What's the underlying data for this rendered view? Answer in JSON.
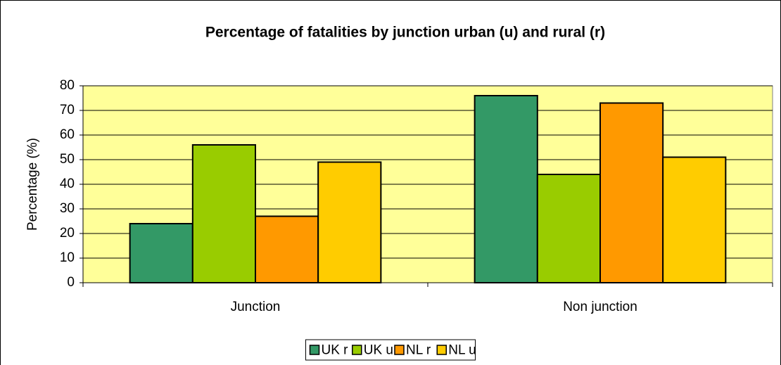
{
  "chart_data": {
    "type": "bar",
    "title": "Percentage of fatalities by junction urban (u) and rural (r)",
    "y_label": "Percentage (%)",
    "categories": [
      "Junction",
      "Non junction"
    ],
    "series": [
      {
        "name": "UK r",
        "color": "#339966",
        "values": [
          24,
          76
        ]
      },
      {
        "name": "UK u",
        "color": "#99cc00",
        "values": [
          56,
          44
        ]
      },
      {
        "name": "NL r",
        "color": "#ff9900",
        "values": [
          27,
          73
        ]
      },
      {
        "name": "NL u",
        "color": "#ffcc00",
        "values": [
          49,
          51
        ]
      }
    ],
    "ylim": [
      0,
      80
    ],
    "yticks": [
      0,
      10,
      20,
      30,
      40,
      50,
      60,
      70,
      80
    ],
    "grid": true,
    "plot_background": "#ffff99",
    "legend_position": "bottom"
  }
}
